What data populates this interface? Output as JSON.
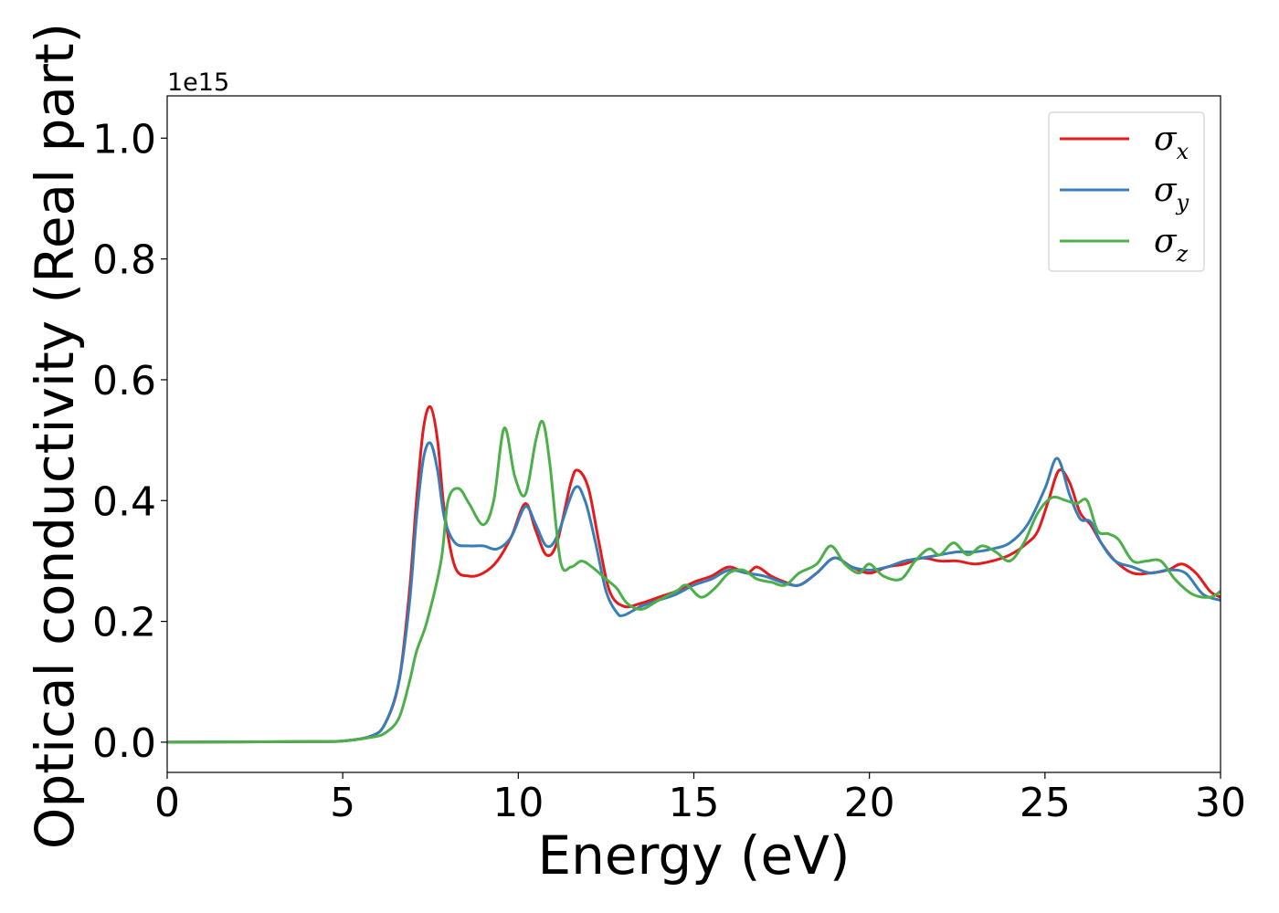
{
  "chart_data": {
    "type": "line",
    "xlabel": "Energy (eV)",
    "ylabel": "Optical conductivity (Real part)",
    "y_offset_text": "1e15",
    "xlim": [
      0,
      30
    ],
    "ylim": [
      -0.05,
      1.07
    ],
    "xticks": [
      0,
      5,
      10,
      15,
      20,
      25,
      30
    ],
    "xtick_labels": [
      "0",
      "5",
      "10",
      "15",
      "20",
      "25",
      "30"
    ],
    "yticks": [
      0.0,
      0.2,
      0.4,
      0.6,
      0.8,
      1.0
    ],
    "ytick_labels": [
      "0.0",
      "0.2",
      "0.4",
      "0.6",
      "0.8",
      "1.0"
    ],
    "grid": false,
    "legend_position": "top-right",
    "series": [
      {
        "name": "σx",
        "legend_symbol": "σ",
        "legend_subscript": "x",
        "color": "#e41a1c",
        "x": [
          0,
          4,
          5,
          5.8,
          6.2,
          6.6,
          6.9,
          7.1,
          7.3,
          7.5,
          7.7,
          7.9,
          8.2,
          8.6,
          9.0,
          9.4,
          9.8,
          10.2,
          10.5,
          10.8,
          11.1,
          11.5,
          11.7,
          12.0,
          12.3,
          12.6,
          13.0,
          13.5,
          14.0,
          14.5,
          15.0,
          15.5,
          16.0,
          16.5,
          16.8,
          17.2,
          17.6,
          18.0,
          18.5,
          19.0,
          19.5,
          20.0,
          20.5,
          21.0,
          21.5,
          22.0,
          22.5,
          23.0,
          23.5,
          24.0,
          24.5,
          24.8,
          25.1,
          25.4,
          25.7,
          26.0,
          26.3,
          26.6,
          27.0,
          27.5,
          28.0,
          28.5,
          28.9,
          29.3,
          29.7,
          30.0
        ],
        "y": [
          0.0,
          0.001,
          0.002,
          0.01,
          0.03,
          0.1,
          0.25,
          0.4,
          0.52,
          0.555,
          0.5,
          0.38,
          0.29,
          0.275,
          0.28,
          0.3,
          0.34,
          0.395,
          0.35,
          0.31,
          0.33,
          0.43,
          0.45,
          0.42,
          0.33,
          0.25,
          0.225,
          0.23,
          0.24,
          0.25,
          0.265,
          0.275,
          0.29,
          0.28,
          0.29,
          0.275,
          0.265,
          0.26,
          0.28,
          0.305,
          0.29,
          0.28,
          0.29,
          0.295,
          0.305,
          0.3,
          0.3,
          0.295,
          0.3,
          0.31,
          0.33,
          0.35,
          0.4,
          0.45,
          0.43,
          0.38,
          0.36,
          0.33,
          0.3,
          0.28,
          0.28,
          0.285,
          0.295,
          0.28,
          0.25,
          0.24
        ]
      },
      {
        "name": "σy",
        "legend_symbol": "σ",
        "legend_subscript": "y",
        "color": "#377eb8",
        "x": [
          0,
          4,
          5,
          5.8,
          6.2,
          6.6,
          6.9,
          7.1,
          7.3,
          7.5,
          7.7,
          7.9,
          8.2,
          8.6,
          9.0,
          9.4,
          9.8,
          10.2,
          10.5,
          10.8,
          11.1,
          11.6,
          11.9,
          12.2,
          12.5,
          12.8,
          13.0,
          13.5,
          14.0,
          14.5,
          15.0,
          15.5,
          16.0,
          16.5,
          17.0,
          17.5,
          18.0,
          18.5,
          19.0,
          19.5,
          20.0,
          20.5,
          21.0,
          21.5,
          22.0,
          22.5,
          23.0,
          23.5,
          24.0,
          24.5,
          25.0,
          25.35,
          25.7,
          26.0,
          26.3,
          26.6,
          27.0,
          27.5,
          28.0,
          28.5,
          29.0,
          29.5,
          30.0
        ],
        "y": [
          0.0,
          0.001,
          0.002,
          0.01,
          0.03,
          0.1,
          0.23,
          0.37,
          0.47,
          0.495,
          0.45,
          0.37,
          0.33,
          0.325,
          0.325,
          0.32,
          0.34,
          0.39,
          0.36,
          0.325,
          0.34,
          0.42,
          0.4,
          0.33,
          0.25,
          0.215,
          0.21,
          0.225,
          0.235,
          0.245,
          0.26,
          0.27,
          0.285,
          0.28,
          0.275,
          0.265,
          0.26,
          0.28,
          0.305,
          0.29,
          0.285,
          0.29,
          0.3,
          0.305,
          0.31,
          0.315,
          0.315,
          0.32,
          0.33,
          0.36,
          0.42,
          0.47,
          0.41,
          0.37,
          0.365,
          0.33,
          0.3,
          0.29,
          0.28,
          0.285,
          0.28,
          0.245,
          0.235
        ]
      },
      {
        "name": "σz",
        "legend_symbol": "σ",
        "legend_subscript": "z",
        "color": "#4daf4a",
        "x": [
          0,
          4,
          5,
          5.8,
          6.2,
          6.6,
          6.9,
          7.1,
          7.4,
          7.8,
          8.0,
          8.3,
          8.6,
          9.0,
          9.3,
          9.6,
          9.9,
          10.2,
          10.5,
          10.7,
          10.9,
          11.2,
          11.5,
          11.8,
          12.1,
          12.5,
          12.8,
          13.1,
          13.5,
          14.0,
          14.5,
          14.8,
          15.2,
          15.6,
          16.0,
          16.4,
          16.8,
          17.2,
          17.6,
          18.0,
          18.5,
          18.9,
          19.3,
          19.7,
          20.0,
          20.4,
          20.9,
          21.3,
          21.7,
          22.0,
          22.4,
          22.8,
          23.2,
          23.6,
          24.0,
          24.4,
          24.8,
          25.2,
          25.6,
          25.9,
          26.2,
          26.5,
          26.8,
          27.1,
          27.5,
          27.9,
          28.3,
          28.7,
          29.2,
          29.7,
          30.0
        ],
        "y": [
          0.0,
          0.001,
          0.002,
          0.008,
          0.015,
          0.04,
          0.1,
          0.15,
          0.2,
          0.3,
          0.4,
          0.42,
          0.395,
          0.36,
          0.4,
          0.52,
          0.44,
          0.41,
          0.5,
          0.53,
          0.46,
          0.3,
          0.29,
          0.3,
          0.29,
          0.27,
          0.255,
          0.23,
          0.22,
          0.235,
          0.25,
          0.26,
          0.24,
          0.255,
          0.28,
          0.285,
          0.27,
          0.265,
          0.26,
          0.28,
          0.295,
          0.325,
          0.295,
          0.28,
          0.295,
          0.275,
          0.27,
          0.3,
          0.32,
          0.31,
          0.33,
          0.31,
          0.325,
          0.315,
          0.3,
          0.33,
          0.38,
          0.405,
          0.4,
          0.395,
          0.4,
          0.35,
          0.345,
          0.335,
          0.3,
          0.3,
          0.3,
          0.27,
          0.245,
          0.24,
          0.25
        ]
      }
    ]
  }
}
